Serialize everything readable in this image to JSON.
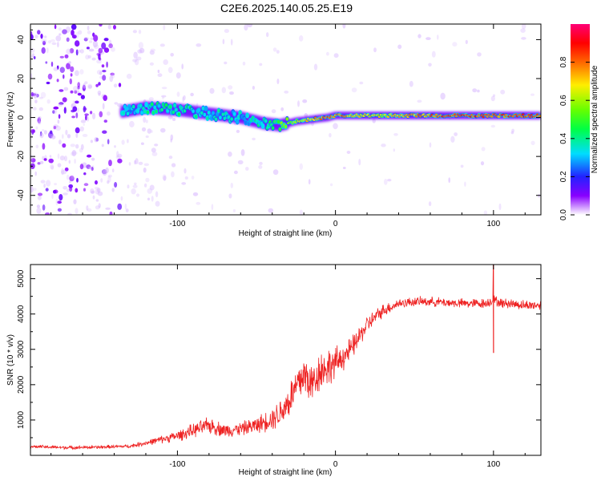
{
  "figure": {
    "title": "C2E6.2025.140.05.25.E19"
  },
  "chart_data": [
    {
      "type": "heatmap",
      "name": "spectrogram",
      "xlabel": "Height of straight line (km)",
      "ylabel": "Frequency (Hz)",
      "xlim": [
        -193,
        130
      ],
      "ylim": [
        -50,
        48
      ],
      "xticks": [
        -100,
        0,
        100
      ],
      "yticks": [
        -40,
        -20,
        0,
        20,
        40
      ],
      "tone_ridge": {
        "x": [
          -135,
          -120,
          -100,
          -80,
          -60,
          -45,
          -35,
          -25,
          -15,
          -5,
          0,
          10,
          30,
          50,
          80,
          100,
          120,
          130
        ],
        "frequency": [
          3,
          5,
          4,
          2,
          0,
          -3,
          -4,
          -2,
          -1,
          0,
          1,
          1,
          1,
          1,
          1,
          1,
          1,
          1
        ],
        "amplitude": [
          0.3,
          0.35,
          0.4,
          0.35,
          0.3,
          0.4,
          0.5,
          0.6,
          0.7,
          0.8,
          0.8,
          0.7,
          0.65,
          0.75,
          0.85,
          0.8,
          0.85,
          0.8
        ]
      },
      "colorbar": {
        "label": "Normalized spectral amplitude",
        "range": [
          0,
          1
        ],
        "ticks": [
          "0.0",
          "0.2",
          "0.4",
          "0.6",
          "0.8"
        ]
      }
    },
    {
      "type": "line",
      "name": "snr",
      "xlabel": "Height of straight line (km)",
      "ylabel": "SNR (10 * v/v)",
      "xlim": [
        -193,
        130
      ],
      "ylim": [
        0,
        5400
      ],
      "xticks": [
        -100,
        0,
        100
      ],
      "yticks": [
        1000,
        2000,
        3000,
        4000,
        5000
      ],
      "series": [
        {
          "name": "SNR",
          "color": "#ee2222",
          "x": [
            -193,
            -170,
            -150,
            -130,
            -120,
            -110,
            -100,
            -90,
            -80,
            -70,
            -60,
            -50,
            -40,
            -35,
            -30,
            -25,
            -20,
            -15,
            -10,
            -5,
            0,
            5,
            10,
            15,
            20,
            30,
            40,
            50,
            60,
            80,
            95,
            100,
            105,
            110,
            120,
            130
          ],
          "y": [
            250,
            220,
            230,
            260,
            350,
            450,
            550,
            700,
            850,
            700,
            750,
            850,
            1050,
            1200,
            1500,
            1900,
            2300,
            2000,
            2400,
            2500,
            2600,
            2800,
            3000,
            3350,
            3700,
            4100,
            4300,
            4350,
            4350,
            4300,
            4300,
            4400,
            4300,
            4300,
            4250,
            4250
          ],
          "noise": [
            60,
            60,
            60,
            60,
            90,
            130,
            180,
            230,
            280,
            230,
            230,
            280,
            380,
            500,
            600,
            750,
            800,
            700,
            700,
            650,
            550,
            450,
            400,
            350,
            300,
            220,
            170,
            160,
            160,
            160,
            170,
            170,
            170,
            170,
            170,
            170
          ],
          "spike": {
            "x": 100,
            "high": 5400,
            "low": 2900
          }
        }
      ]
    }
  ]
}
